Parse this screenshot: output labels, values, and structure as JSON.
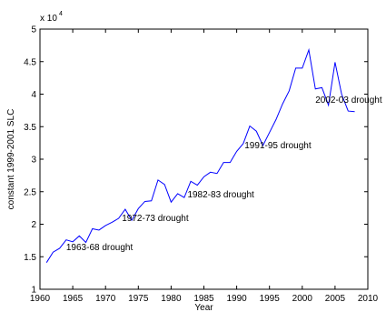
{
  "chart_data": {
    "type": "line",
    "xlabel": "Year",
    "ylabel": "constant 1999-2001 SLC",
    "y_multiplier": {
      "base": "x 10",
      "exponent": "4"
    },
    "xlim": [
      1960,
      2010
    ],
    "ylim": [
      10000,
      50000
    ],
    "x_ticks": [
      1960,
      1965,
      1970,
      1975,
      1980,
      1985,
      1990,
      1995,
      2000,
      2005,
      2010
    ],
    "x_tick_labels": [
      "1960",
      "1965",
      "1970",
      "1975",
      "1980",
      "1985",
      "1990",
      "1995",
      "2000",
      "2005",
      "2010"
    ],
    "y_ticks": [
      10000,
      15000,
      20000,
      25000,
      30000,
      35000,
      40000,
      45000,
      50000
    ],
    "y_tick_labels": [
      "1",
      "1.5",
      "2",
      "2.5",
      "3",
      "3.5",
      "4",
      "4.5",
      "5"
    ],
    "grid": false,
    "line_color": "#0000ff",
    "series": [
      {
        "x": [
          1961,
          1962,
          1963,
          1964,
          1965,
          1966,
          1967,
          1968,
          1969,
          1970,
          1971,
          1972,
          1973,
          1974,
          1975,
          1976,
          1977,
          1978,
          1979,
          1980,
          1981,
          1982,
          1983,
          1984,
          1985,
          1986,
          1987,
          1988,
          1989,
          1990,
          1991,
          1992,
          1993,
          1994,
          1995,
          1996,
          1997,
          1998,
          1999,
          2000,
          2001,
          2002,
          2003,
          2004,
          2005,
          2006,
          2007,
          2008
        ],
        "y": [
          14100,
          15700,
          16300,
          17600,
          17300,
          18200,
          17200,
          19300,
          19100,
          19800,
          20300,
          20900,
          22300,
          20600,
          22400,
          23500,
          23600,
          26800,
          26100,
          23400,
          24700,
          24100,
          26600,
          26000,
          27300,
          28000,
          27800,
          29500,
          29500,
          31200,
          32400,
          35100,
          34300,
          32100,
          34100,
          36100,
          38500,
          40500,
          44000,
          44000,
          46800,
          40800,
          41000,
          38300,
          44900,
          40000,
          37400,
          37300
        ]
      }
    ],
    "annotations": [
      {
        "text": "1963-68 drought",
        "x": 1964,
        "y": 16000
      },
      {
        "text": "1972-73 drought",
        "x": 1972.5,
        "y": 20500
      },
      {
        "text": "1982-83 drought",
        "x": 1982.5,
        "y": 24100
      },
      {
        "text": "1991-95 drought",
        "x": 1991.2,
        "y": 31700
      },
      {
        "text": "2002-03 drought",
        "x": 2002,
        "y": 38700
      }
    ]
  }
}
